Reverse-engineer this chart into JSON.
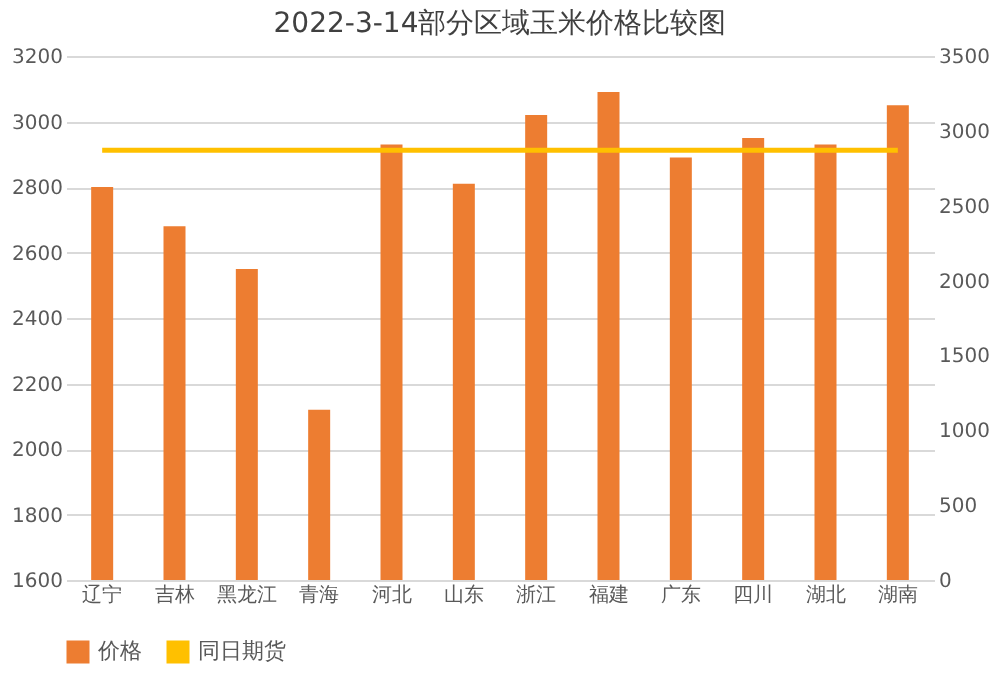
{
  "chart_data": {
    "type": "bar",
    "title": "2022-3-14部分区域玉米价格比较图",
    "categories": [
      "辽宁",
      "吉林",
      "黑龙江",
      "青海",
      "河北",
      "山东",
      "浙江",
      "福建",
      "广东",
      "四川",
      "湖北",
      "湖南"
    ],
    "series": [
      {
        "name": "价格",
        "color": "#ed7d31",
        "values": [
          2800,
          2680,
          2550,
          2120,
          2930,
          2810,
          3020,
          3090,
          2890,
          2950,
          2930,
          3050
        ]
      },
      {
        "name": "同日期货",
        "type": "line",
        "axis": "y2",
        "color": "#ffc000",
        "values": [
          2870,
          2870,
          2870,
          2870,
          2870,
          2870,
          2870,
          2870,
          2870,
          2870,
          2870,
          2870
        ]
      }
    ],
    "ylim": [
      1600,
      3200
    ],
    "yticks": [
      1600,
      1800,
      2000,
      2200,
      2400,
      2600,
      2800,
      3000,
      3200
    ],
    "y2lim": [
      0,
      3500
    ],
    "y2ticks": [
      0,
      500,
      1000,
      1500,
      2000,
      2500,
      3000,
      3500
    ],
    "grid": "y",
    "legend": "bottom"
  }
}
